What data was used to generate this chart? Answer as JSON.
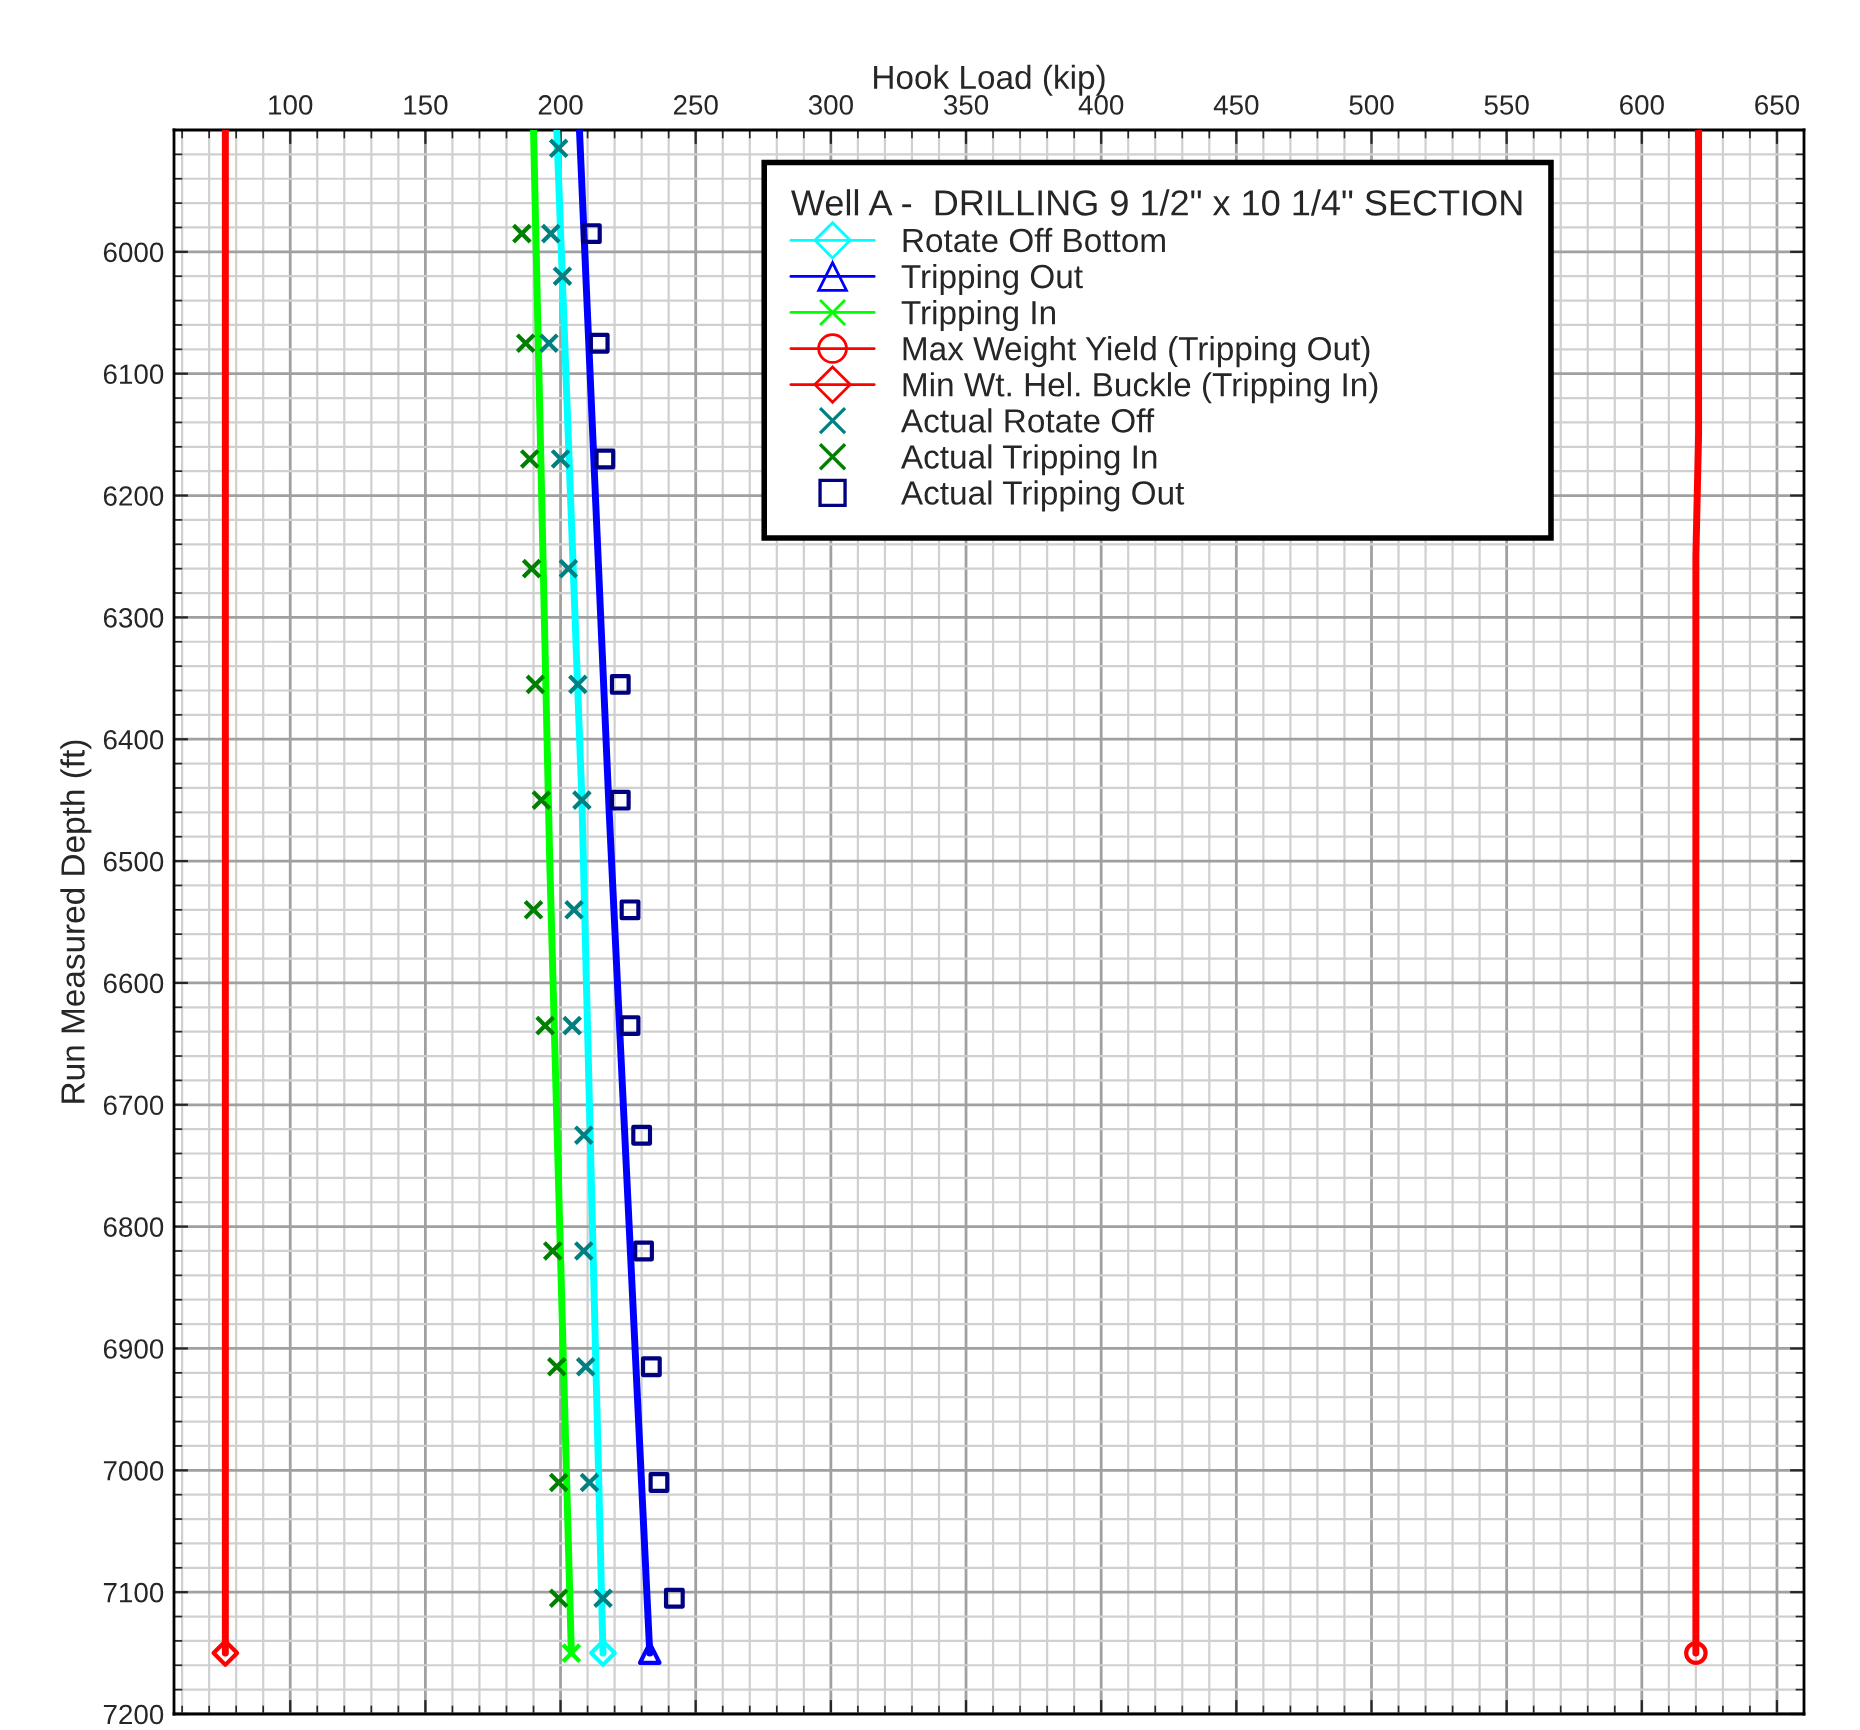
{
  "chart_data": {
    "type": "line",
    "xlabel": "Hook Load (kip)",
    "ylabel": "Run Measured Depth (ft)",
    "legend_title": "Well A -  DRILLING 9 1/2\" x 10 1/4\" SECTION",
    "xlim": [
      57,
      660
    ],
    "xticks": [
      100,
      150,
      200,
      250,
      300,
      350,
      400,
      450,
      500,
      550,
      600,
      650
    ],
    "ylim": [
      7200,
      5900
    ],
    "yticks": [
      6000,
      6100,
      6200,
      6300,
      6400,
      6500,
      6600,
      6700,
      6800,
      6900,
      7000,
      7100,
      7200
    ],
    "grid": true,
    "legend": "top right",
    "series": [
      {
        "name": "Rotate Off Bottom",
        "color": "#00ffff",
        "x": [
          198.6,
          207.9,
          215.7
        ],
        "values": [
          5900,
          6450,
          7150
        ]
      },
      {
        "type": "scatter",
        "color": "#00ffff",
        "marker": "diamond",
        "x": [
          215.7
        ],
        "values": [
          7150
        ]
      },
      {
        "name": "Tripping Out",
        "color": "#0000ff",
        "x": [
          207,
          218,
          233
        ],
        "values": [
          5900,
          6460,
          7150
        ]
      },
      {
        "type": "scatter",
        "color": "#0000ff",
        "marker": "triangle",
        "x": [
          233
        ],
        "values": [
          7150
        ]
      },
      {
        "name": "Tripping In",
        "color": "#00ff00",
        "x": [
          190,
          196,
          204
        ],
        "values": [
          5900,
          6500,
          7150
        ]
      },
      {
        "type": "scatter",
        "color": "#00ff00",
        "marker": "cross",
        "x": [
          204
        ],
        "values": [
          7150
        ]
      },
      {
        "name": "Max Weight Yield (Tripping Out)",
        "color": "#ff0000",
        "x": [
          621,
          621,
          620,
          620
        ],
        "values": [
          5900,
          6150,
          6250,
          7150
        ]
      },
      {
        "type": "scatter",
        "color": "#ff0000",
        "marker": "circle",
        "x": [
          620
        ],
        "values": [
          7150
        ]
      },
      {
        "name": "Min Wt. Hel. Buckle (Tripping In)",
        "color": "#ff0000",
        "x": [
          76,
          76
        ],
        "values": [
          5900,
          7150
        ]
      },
      {
        "type": "scatter",
        "color": "#ff0000",
        "marker": "diamond",
        "x": [
          76
        ],
        "values": [
          7150
        ]
      },
      {
        "name": "Actual Rotate Off",
        "type": "scatter",
        "color": "#008080",
        "marker": "cross",
        "x": [
          199.3,
          196.4,
          200.7,
          195.7,
          200,
          202.9,
          206.4,
          207.9,
          205,
          204.3,
          208.6,
          208.6,
          209.3,
          210.7,
          215.7
        ],
        "values": [
          5915,
          5985,
          6020,
          6075,
          6170,
          6260,
          6355,
          6450,
          6540,
          6635,
          6725,
          6820,
          6915,
          7010,
          7105
        ]
      },
      {
        "name": "Actual Tripping In",
        "type": "scatter",
        "color": "#007f00",
        "marker": "cross",
        "x": [
          185.7,
          187.1,
          188.6,
          189.3,
          190.7,
          192.9,
          190,
          194.3,
          197.1,
          198.6,
          199.3,
          199.3
        ],
        "values": [
          5985,
          6075,
          6170,
          6260,
          6355,
          6450,
          6540,
          6635,
          6820,
          6915,
          7010,
          7105
        ]
      },
      {
        "name": "Actual Tripping Out",
        "type": "scatter",
        "color": "#000080",
        "marker": "square",
        "x": [
          211.4,
          214.3,
          216.4,
          222.1,
          222.1,
          225.7,
          225.7,
          230,
          230.7,
          233.6,
          236.4,
          242.1
        ],
        "values": [
          5985,
          6075,
          6170,
          6355,
          6450,
          6540,
          6635,
          6725,
          6820,
          6915,
          7010,
          7105
        ]
      }
    ]
  }
}
